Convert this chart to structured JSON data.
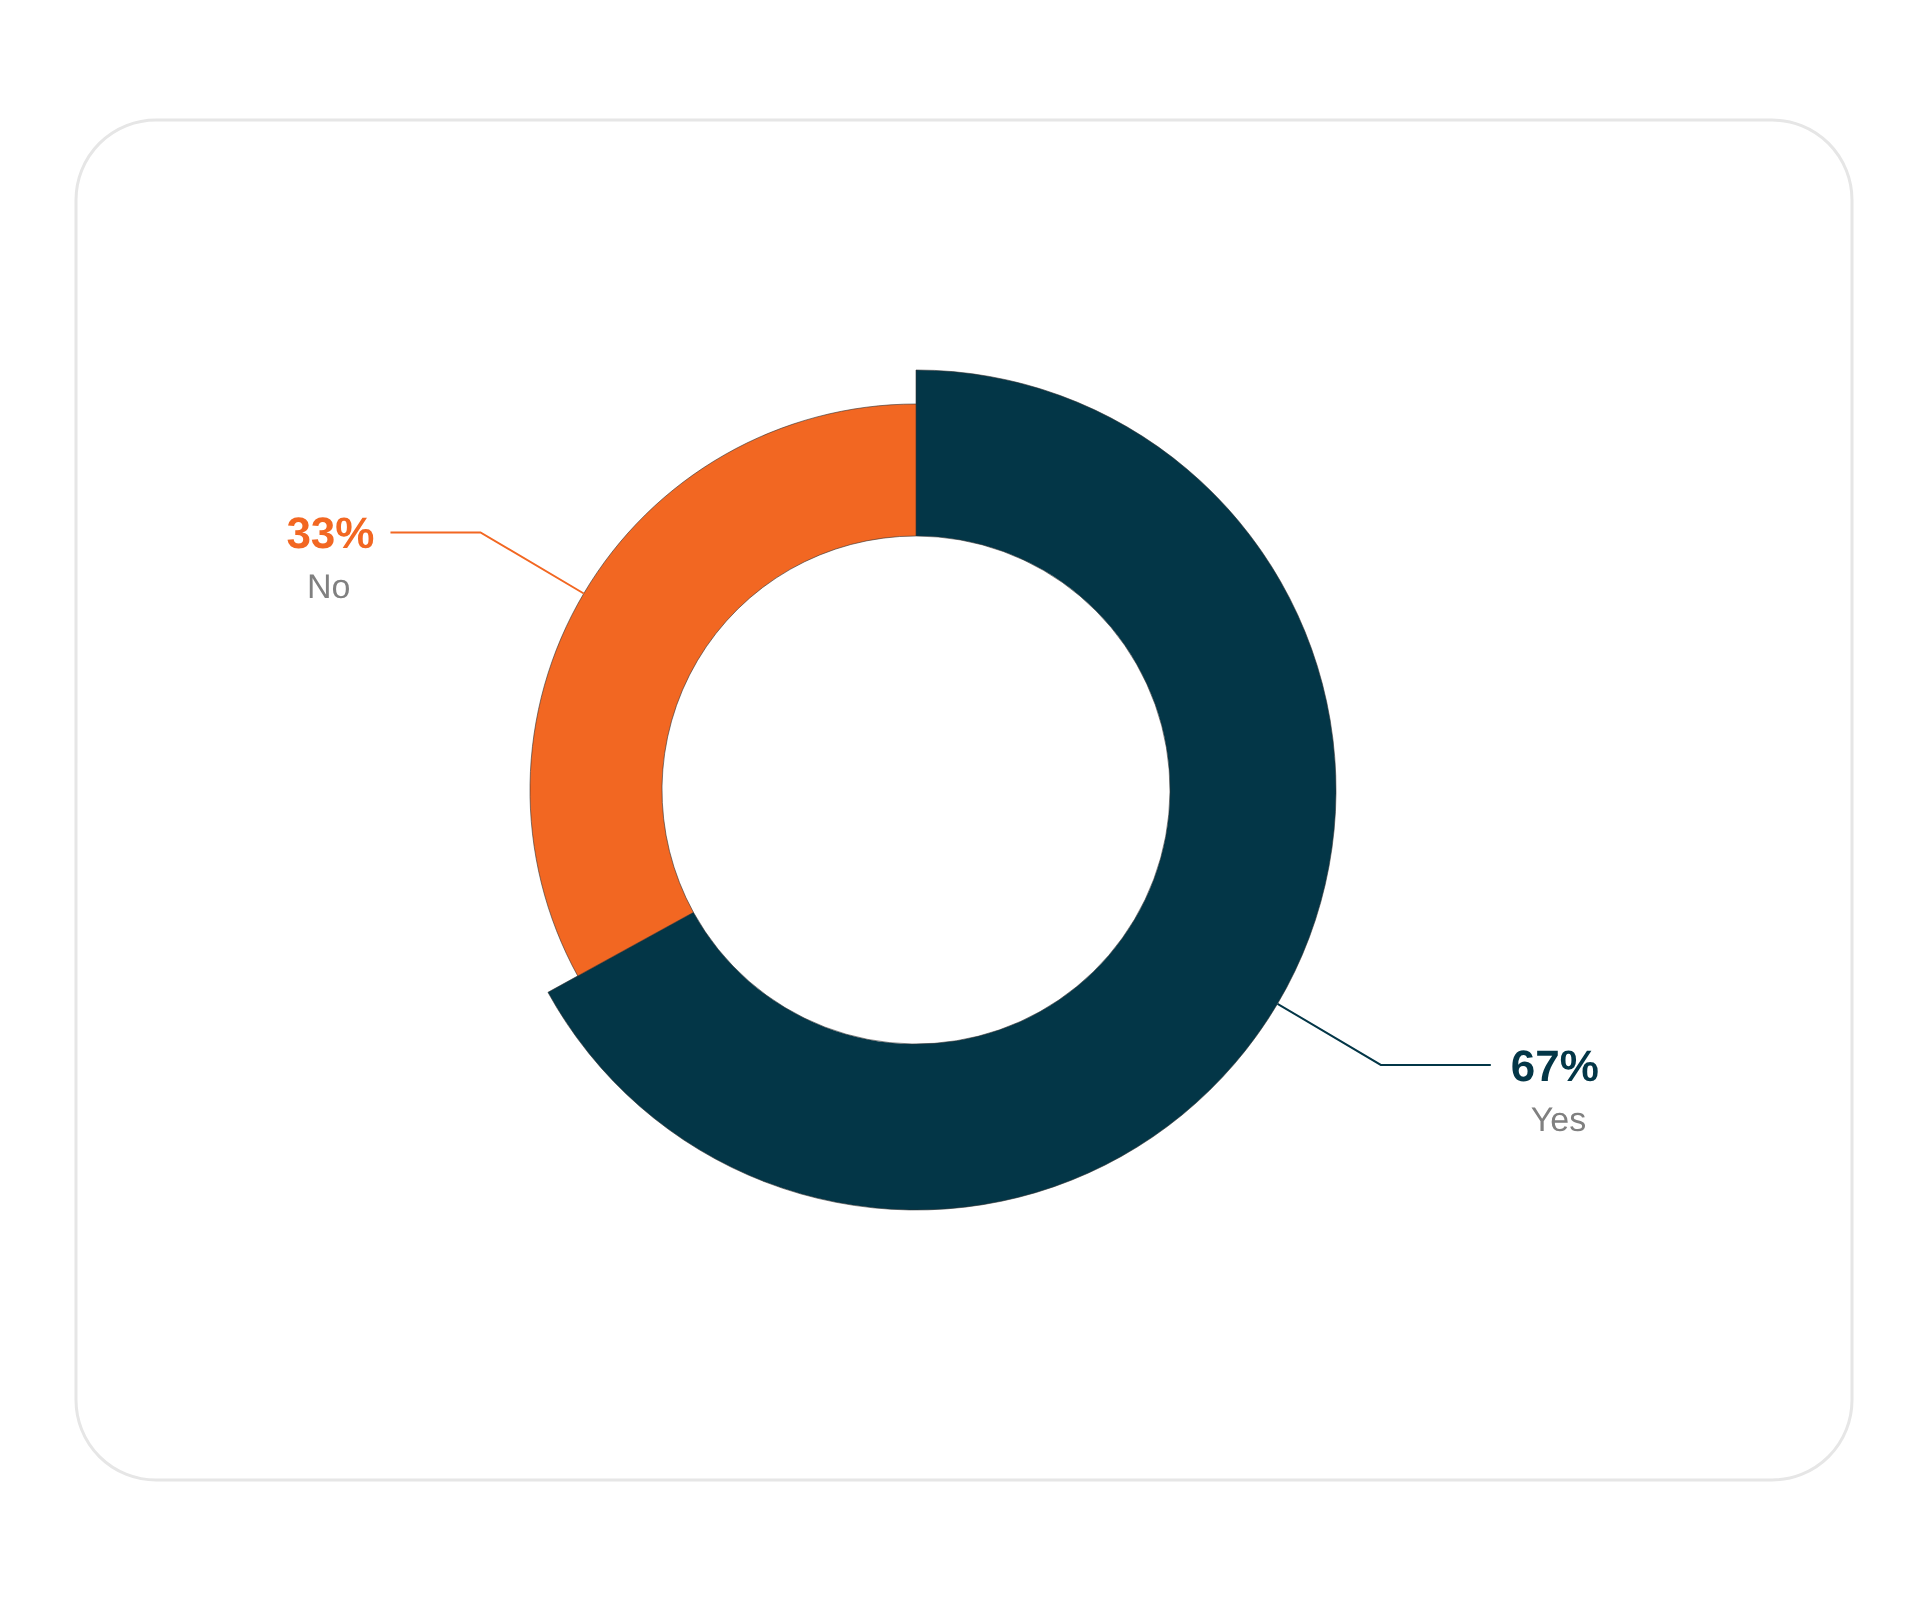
{
  "chart_data": {
    "type": "donut",
    "categories": [
      "Yes",
      "No"
    ],
    "values": [
      67,
      33
    ],
    "colors": [
      "#033647",
      "#f26722"
    ],
    "value_labels": [
      "67%",
      "33%"
    ]
  }
}
